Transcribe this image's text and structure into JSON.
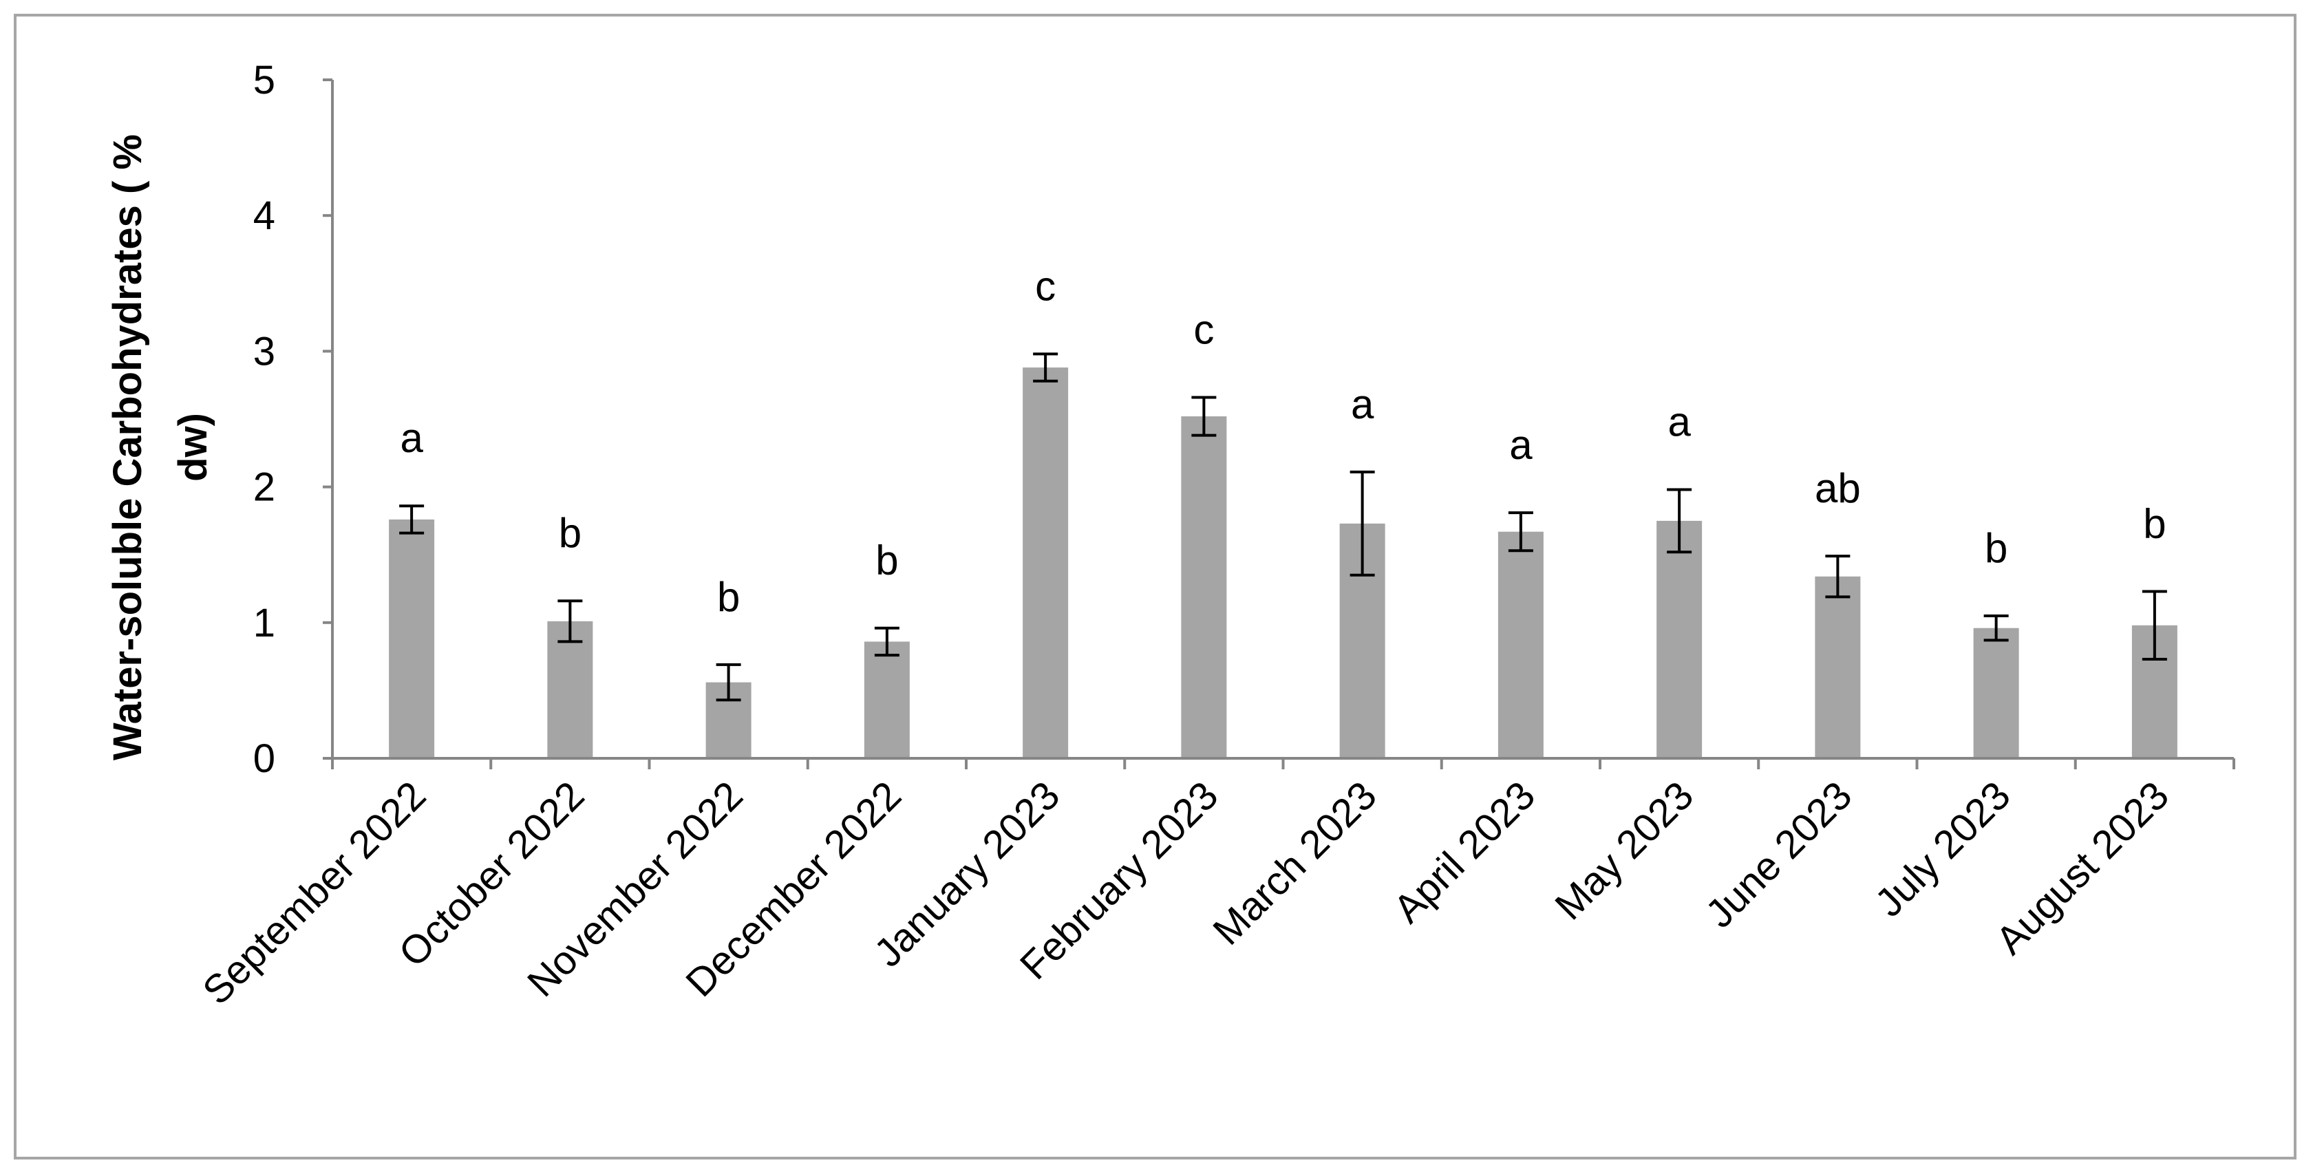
{
  "chart_data": {
    "type": "bar",
    "ylabel_line1": "Water-soluble Carbohydrates ( %",
    "ylabel_line2": "dw)",
    "ylim": [
      0,
      5
    ],
    "yticks": [
      0,
      1,
      2,
      3,
      4,
      5
    ],
    "grid": false,
    "bar_color": "#a5a5a5",
    "axis_color": "#868686",
    "categories": [
      "September 2022",
      "October 2022",
      "November 2022",
      "December 2022",
      "January 2023",
      "February 2023",
      "March 2023",
      "April 2023",
      "May 2023",
      "June 2023",
      "July 2023",
      "August 2023"
    ],
    "values": [
      1.76,
      1.01,
      0.56,
      0.86,
      2.88,
      2.52,
      1.73,
      1.67,
      1.75,
      1.34,
      0.96,
      0.98
    ],
    "error": [
      0.1,
      0.15,
      0.13,
      0.1,
      0.1,
      0.14,
      0.38,
      0.14,
      0.23,
      0.15,
      0.09,
      0.25
    ],
    "significance": [
      "a",
      "b",
      "b",
      "b",
      "c",
      "c",
      "a",
      "a",
      "a",
      "ab",
      "b",
      "b"
    ]
  }
}
